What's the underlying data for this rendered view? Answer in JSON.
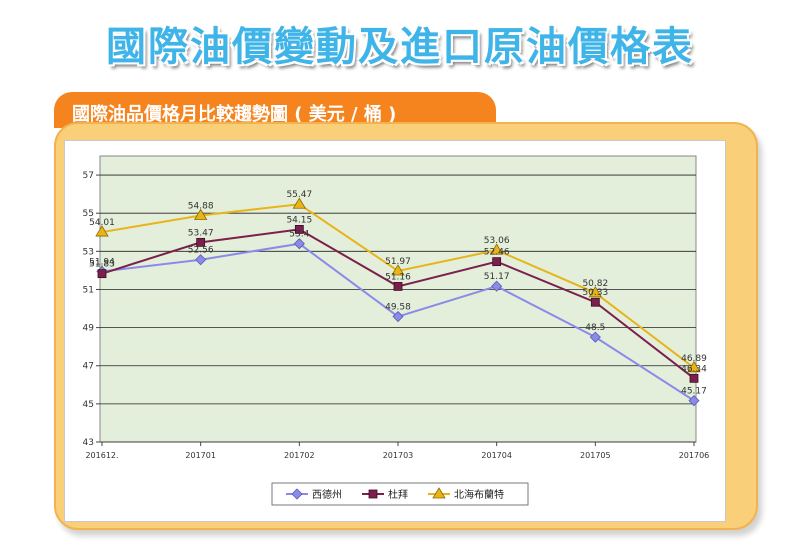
{
  "header": {
    "title": "國際油價變動及進口原油價格表"
  },
  "tab": {
    "label": "國際油品價格月比較趨勢圖 ( 美元 / 桶 )"
  },
  "chart_data": {
    "type": "line",
    "categories": [
      "201612.",
      "201701",
      "201702",
      "201703",
      "201704",
      "201705",
      "201706"
    ],
    "ylim": [
      43,
      58
    ],
    "yticks": [
      43,
      45,
      47,
      49,
      51,
      53,
      55,
      57
    ],
    "grid": true,
    "legend_position": "bottom",
    "plot_background": "#e3eedb",
    "series": [
      {
        "name": "西德州",
        "color": "#8a8ae8",
        "marker": "diamond",
        "values": [
          51.94,
          52.56,
          53.4,
          49.58,
          51.17,
          48.5,
          45.17
        ],
        "labels": [
          "51.94",
          "52.56",
          "53.4",
          "49.58",
          "51.17",
          "48.5",
          "45.17"
        ]
      },
      {
        "name": "杜拜",
        "color": "#7b1f4c",
        "marker": "square",
        "values": [
          51.83,
          53.47,
          54.15,
          51.16,
          52.46,
          50.33,
          46.34
        ],
        "labels": [
          "51.83",
          "53.47",
          "54.15",
          "51.16",
          "52.46",
          "50.33",
          "46.34"
        ]
      },
      {
        "name": "北海布蘭特",
        "color": "#e8b418",
        "marker": "triangle",
        "values": [
          54.01,
          54.88,
          55.47,
          51.97,
          53.06,
          50.82,
          46.89
        ],
        "labels": [
          "54.01",
          "54.88",
          "55.47",
          "51.97",
          "53.06",
          "50.82",
          "46.89"
        ]
      }
    ]
  }
}
